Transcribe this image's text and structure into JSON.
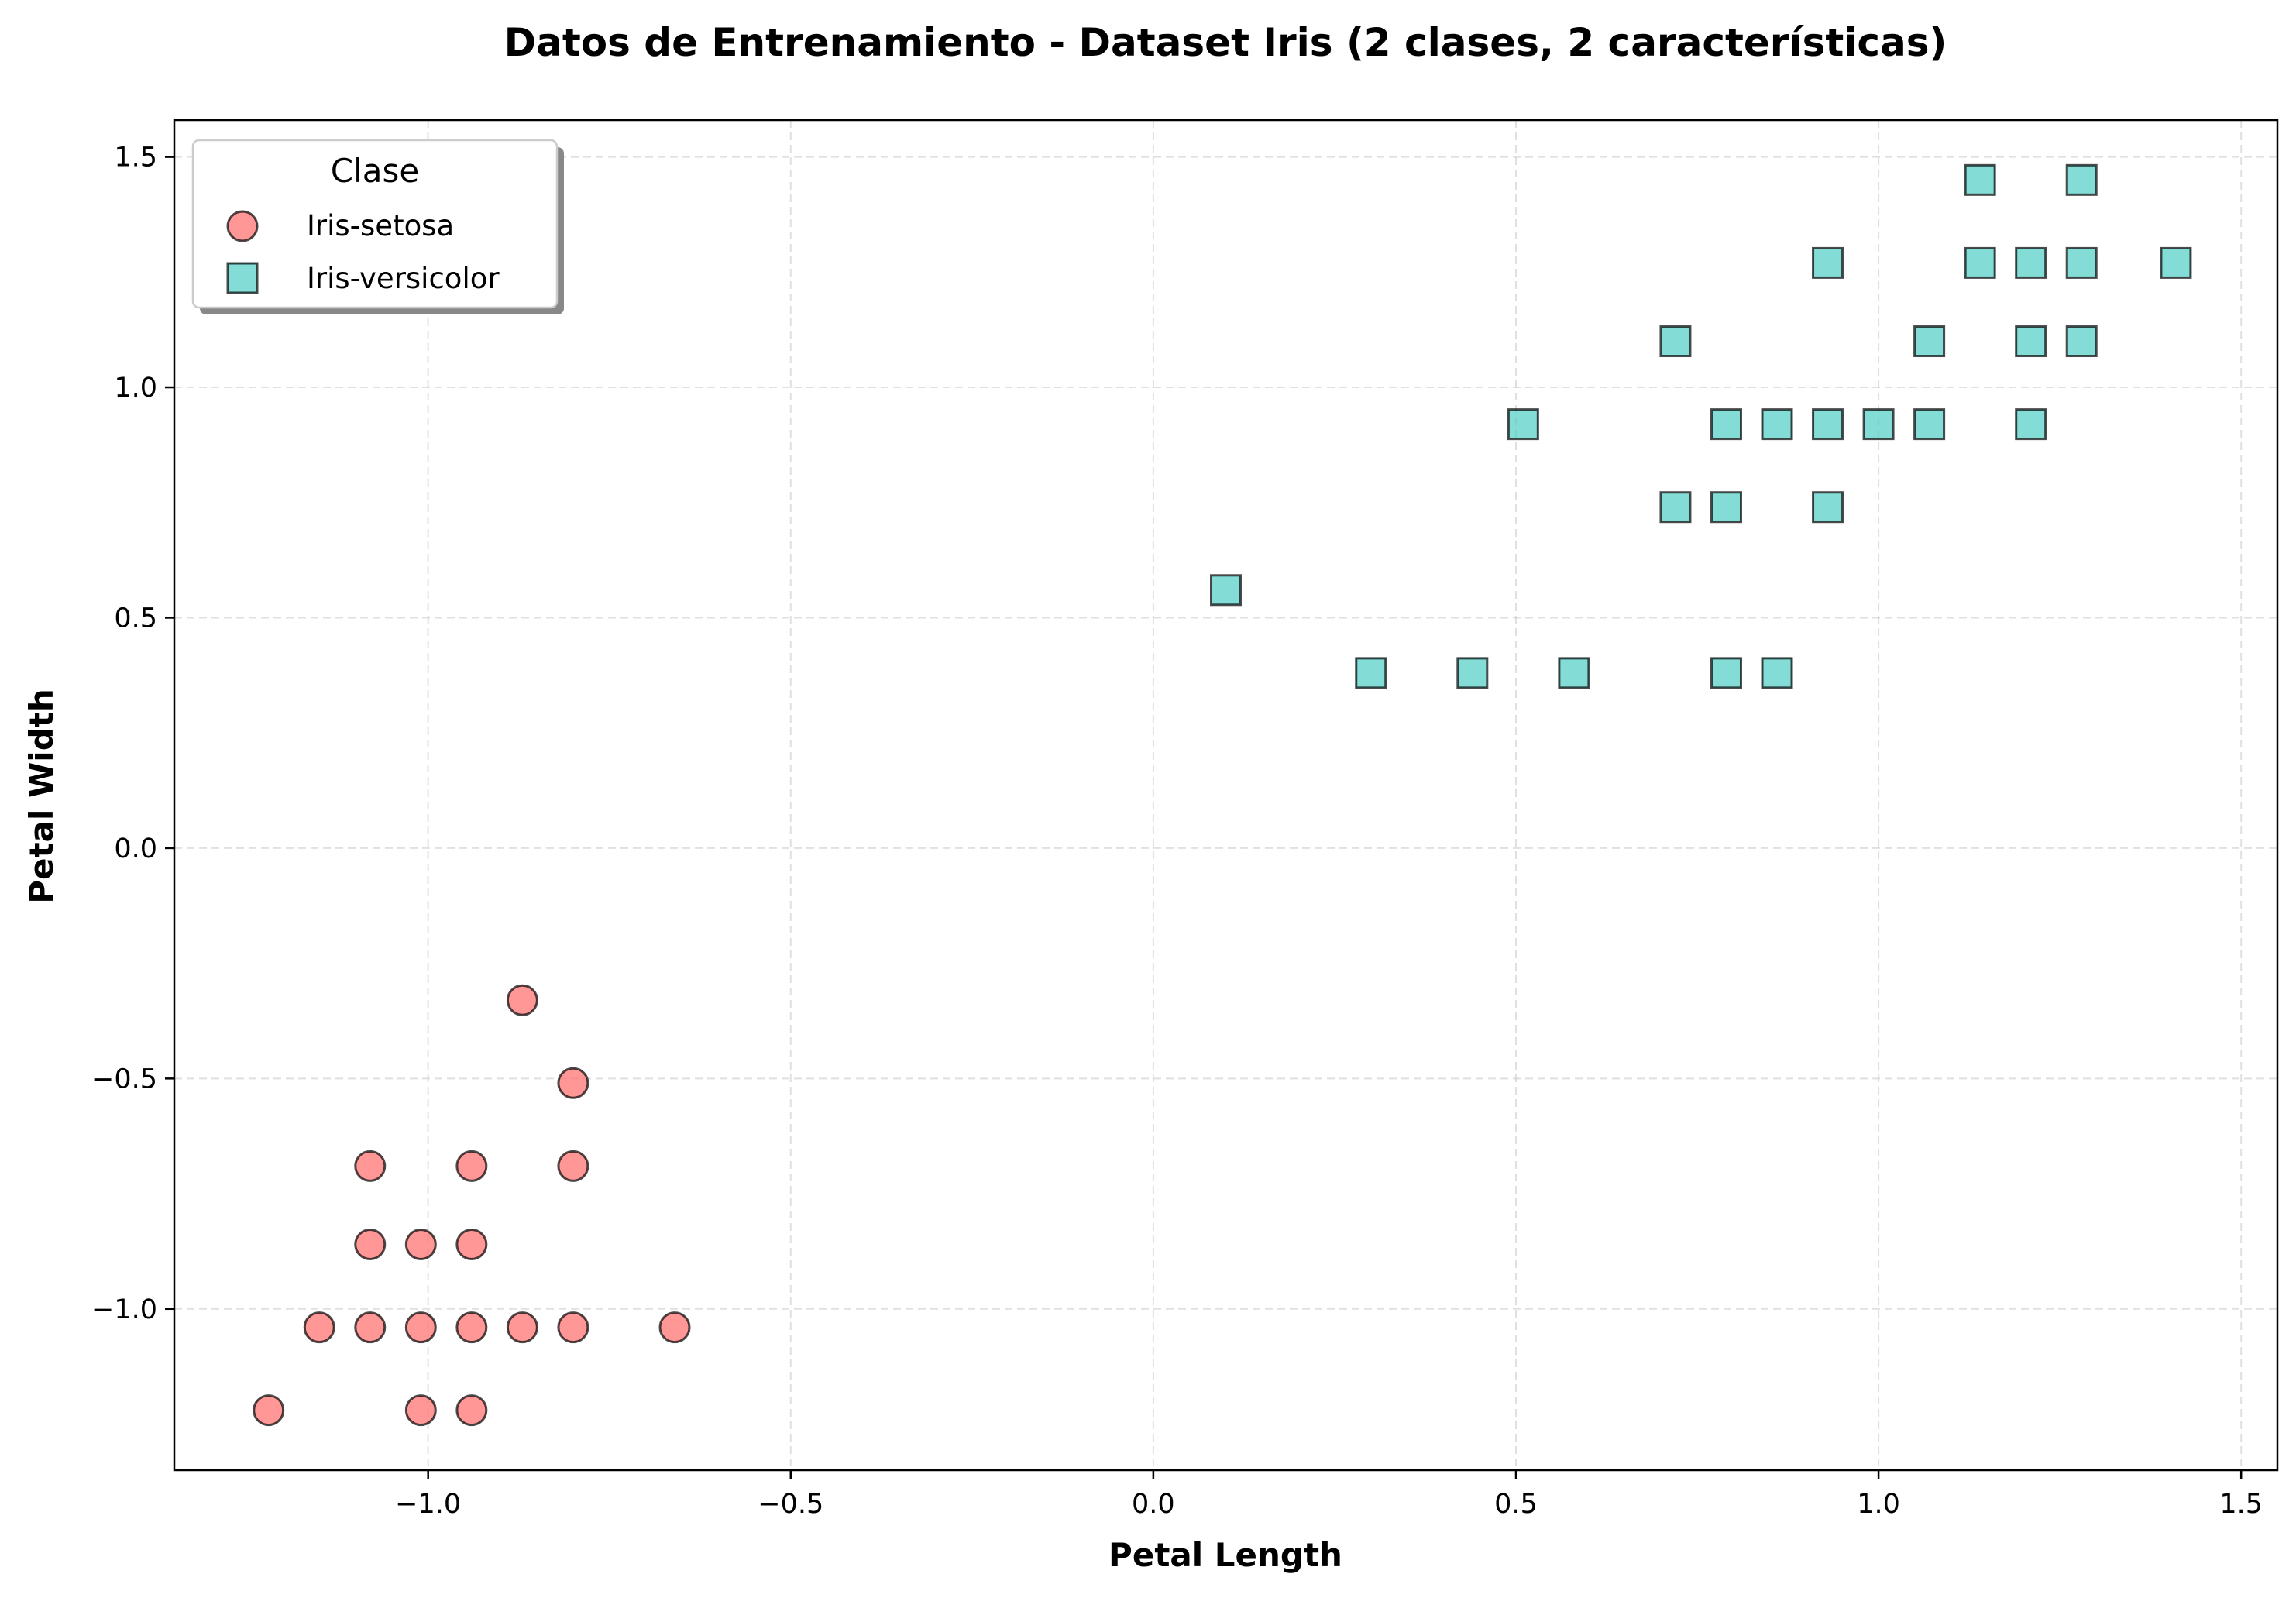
{
  "chart_data": {
    "type": "scatter",
    "title": "Datos de Entrenamiento - Dataset Iris (2 clases, 2 características)",
    "xlabel": "Petal Length",
    "ylabel": "Petal Width",
    "xlim": [
      -1.35,
      1.55
    ],
    "ylim": [
      -1.35,
      1.58
    ],
    "xticks": [
      -1.0,
      -0.5,
      0.0,
      0.5,
      1.0,
      1.5
    ],
    "xtick_labels": [
      "−1.0",
      "−0.5",
      "0.0",
      "0.5",
      "1.0",
      "1.5"
    ],
    "yticks": [
      -1.0,
      -0.5,
      0.0,
      0.5,
      1.0,
      1.5
    ],
    "ytick_labels": [
      "−1.0",
      "−0.5",
      "0.0",
      "0.5",
      "1.0",
      "1.5"
    ],
    "grid": true,
    "legend": {
      "title": "Clase",
      "position": "upper-left"
    },
    "series": [
      {
        "name": "Iris-setosa",
        "marker": "circle",
        "color": "#FF6B6B",
        "points": [
          [
            -1.22,
            -1.22
          ],
          [
            -1.01,
            -1.22
          ],
          [
            -0.94,
            -1.22
          ],
          [
            -1.15,
            -1.04
          ],
          [
            -1.08,
            -1.04
          ],
          [
            -1.01,
            -1.04
          ],
          [
            -0.94,
            -1.04
          ],
          [
            -0.87,
            -1.04
          ],
          [
            -0.8,
            -1.04
          ],
          [
            -0.66,
            -1.04
          ],
          [
            -1.08,
            -0.86
          ],
          [
            -1.01,
            -0.86
          ],
          [
            -0.94,
            -0.86
          ],
          [
            -1.08,
            -0.69
          ],
          [
            -0.94,
            -0.69
          ],
          [
            -0.8,
            -0.69
          ],
          [
            -0.8,
            -0.51
          ],
          [
            -0.87,
            -0.33
          ]
        ]
      },
      {
        "name": "Iris-versicolor",
        "marker": "square",
        "color": "#4ECDC4",
        "points": [
          [
            0.1,
            0.56
          ],
          [
            0.3,
            0.38
          ],
          [
            0.44,
            0.38
          ],
          [
            0.58,
            0.38
          ],
          [
            0.79,
            0.38
          ],
          [
            0.86,
            0.38
          ],
          [
            0.72,
            0.74
          ],
          [
            0.79,
            0.74
          ],
          [
            0.93,
            0.74
          ],
          [
            0.51,
            0.92
          ],
          [
            0.79,
            0.92
          ],
          [
            0.86,
            0.92
          ],
          [
            0.93,
            0.92
          ],
          [
            1.0,
            0.92
          ],
          [
            1.07,
            0.92
          ],
          [
            1.21,
            0.92
          ],
          [
            0.72,
            1.1
          ],
          [
            1.07,
            1.1
          ],
          [
            1.21,
            1.1
          ],
          [
            1.28,
            1.1
          ],
          [
            0.93,
            1.27
          ],
          [
            1.14,
            1.27
          ],
          [
            1.21,
            1.27
          ],
          [
            1.28,
            1.27
          ],
          [
            1.41,
            1.27
          ],
          [
            1.14,
            1.45
          ],
          [
            1.28,
            1.45
          ]
        ]
      }
    ]
  }
}
